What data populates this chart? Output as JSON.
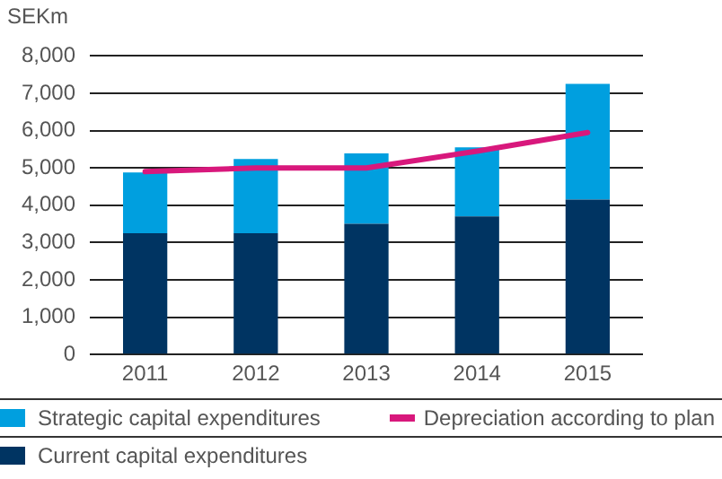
{
  "chart_data": {
    "type": "bar",
    "ylabel": "SEKm",
    "categories": [
      "2011",
      "2012",
      "2013",
      "2014",
      "2015"
    ],
    "stacked": true,
    "series": [
      {
        "name": "Current capital expenditures",
        "color": "#003462",
        "values": [
          3250,
          3250,
          3500,
          3700,
          4150
        ]
      },
      {
        "name": "Strategic capital expenditures",
        "color": "#009fdf",
        "values": [
          1630,
          1990,
          1890,
          1850,
          3100
        ]
      },
      {
        "name": "Depreciation according to plan",
        "type": "line",
        "color": "#d8187c",
        "values": [
          4900,
          5000,
          5000,
          5450,
          5950
        ]
      }
    ],
    "ylim": [
      0,
      8000
    ],
    "yticks": [
      0,
      {
        "value": 1000,
        "label": "1,000"
      },
      {
        "value": 2000,
        "label": "2,000"
      },
      {
        "value": 3000,
        "label": "3,000"
      },
      {
        "value": 4000,
        "label": "4,000"
      },
      {
        "value": 5000,
        "label": "5,000"
      },
      {
        "value": 6000,
        "label": "6,000"
      },
      {
        "value": 7000,
        "label": "7,000"
      },
      {
        "value": 8000,
        "label": "8,000"
      }
    ],
    "grid": "y",
    "legend": "bottom",
    "marker": "none"
  }
}
